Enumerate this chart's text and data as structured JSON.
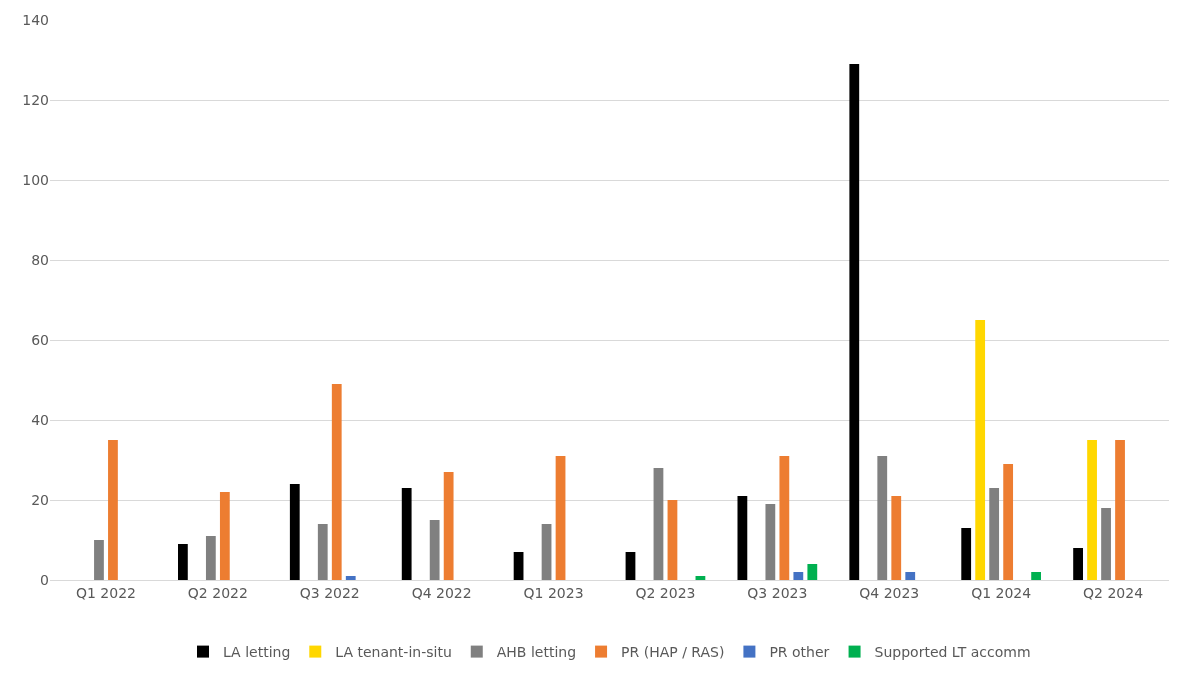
{
  "chart_data": {
    "type": "bar",
    "categories": [
      "Q1 2022",
      "Q2 2022",
      "Q3 2022",
      "Q4 2022",
      "Q1 2023",
      "Q2 2023",
      "Q3 2023",
      "Q4 2023",
      "Q1 2024",
      "Q2 2024"
    ],
    "series": [
      {
        "name": "LA letting",
        "color": "#000000",
        "values": [
          0,
          9,
          24,
          23,
          7,
          7,
          21,
          129,
          13,
          8
        ]
      },
      {
        "name": "LA tenant-in-situ",
        "color": "#ffd700",
        "values": [
          0,
          0,
          0,
          0,
          0,
          0,
          0,
          0,
          65,
          35
        ]
      },
      {
        "name": "AHB letting",
        "color": "#808080",
        "values": [
          10,
          11,
          14,
          15,
          14,
          28,
          19,
          31,
          23,
          18
        ]
      },
      {
        "name": "PR (HAP / RAS)",
        "color": "#ed7d31",
        "values": [
          35,
          22,
          49,
          27,
          31,
          20,
          31,
          21,
          29,
          35
        ]
      },
      {
        "name": "PR other",
        "color": "#4472c4",
        "values": [
          0,
          0,
          1,
          0,
          0,
          0,
          2,
          2,
          0,
          0
        ]
      },
      {
        "name": "Supported LT accomm",
        "color": "#00b050",
        "values": [
          0,
          0,
          0,
          0,
          0,
          1,
          4,
          0,
          2,
          0
        ]
      }
    ],
    "ylim": [
      0,
      140
    ],
    "yticks": [
      0,
      20,
      40,
      60,
      80,
      100,
      120,
      140
    ],
    "grid": "y",
    "legend": "bottom"
  }
}
